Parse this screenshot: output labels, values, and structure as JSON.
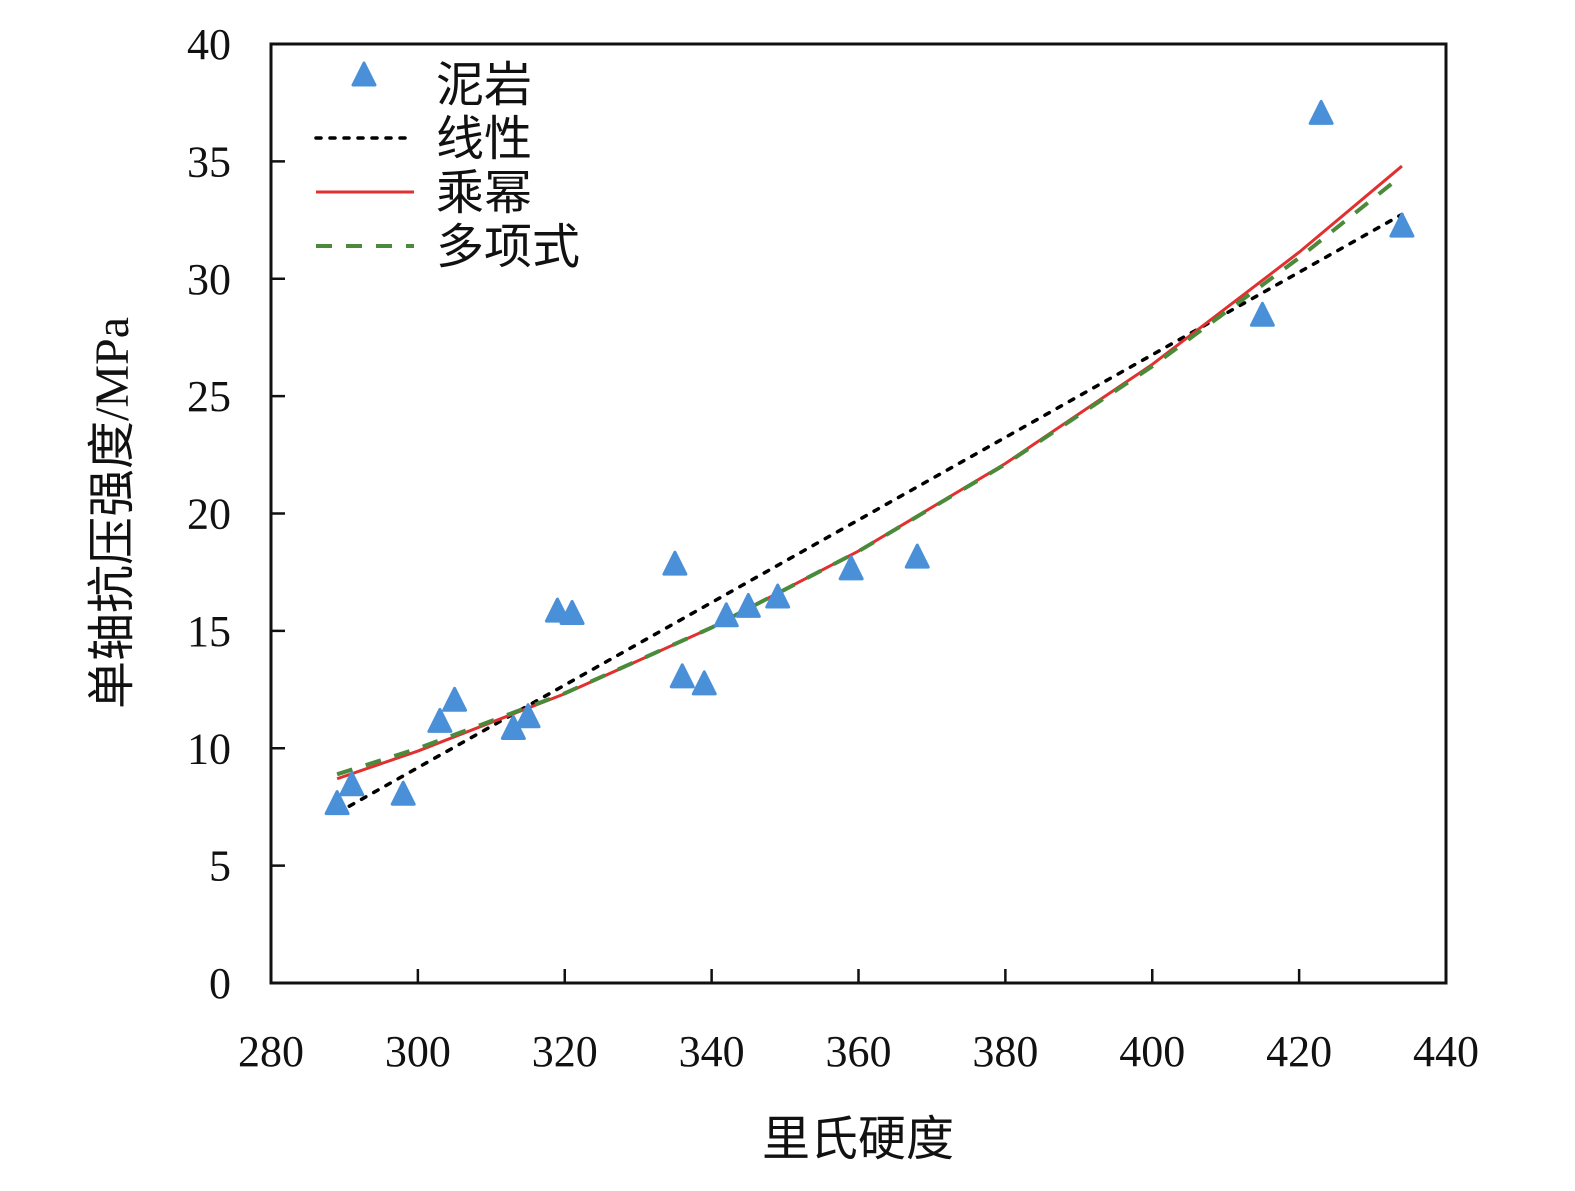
{
  "chart_data": {
    "type": "scatter",
    "title": "",
    "xlabel": "里氏硬度",
    "ylabel": "单轴抗压强度/MPa",
    "xlim": [
      280,
      440
    ],
    "ylim": [
      0,
      40
    ],
    "xticks": [
      280,
      300,
      320,
      340,
      360,
      380,
      400,
      420,
      440
    ],
    "yticks": [
      0,
      5,
      10,
      15,
      20,
      25,
      30,
      35,
      40
    ],
    "grid": false,
    "legend_position": "top-left",
    "series": [
      {
        "name": "泥岩",
        "kind": "scatter",
        "marker": "triangle",
        "color": "#4a90d9",
        "points": [
          [
            289,
            7.6
          ],
          [
            291,
            8.4
          ],
          [
            298,
            8.0
          ],
          [
            303,
            11.1
          ],
          [
            305,
            12.0
          ],
          [
            313,
            10.8
          ],
          [
            315,
            11.3
          ],
          [
            319,
            15.8
          ],
          [
            321,
            15.7
          ],
          [
            335,
            17.8
          ],
          [
            336,
            13.0
          ],
          [
            339,
            12.7
          ],
          [
            342,
            15.6
          ],
          [
            345,
            16.0
          ],
          [
            349,
            16.4
          ],
          [
            359,
            17.6
          ],
          [
            368,
            18.1
          ],
          [
            415,
            28.4
          ],
          [
            423,
            37.0
          ],
          [
            434,
            32.2
          ]
        ]
      },
      {
        "name": "线性",
        "kind": "line",
        "style": "dotted",
        "color": "#000000",
        "points": [
          [
            289,
            7.24
          ],
          [
            434,
            32.74
          ]
        ]
      },
      {
        "name": "乘幂",
        "kind": "line",
        "style": "solid",
        "color": "#e03030",
        "points": [
          [
            289,
            8.7
          ],
          [
            300,
            9.88
          ],
          [
            320,
            12.32
          ],
          [
            340,
            15.14
          ],
          [
            360,
            18.4
          ],
          [
            380,
            22.13
          ],
          [
            400,
            26.35
          ],
          [
            420,
            31.13
          ],
          [
            434,
            34.8
          ]
        ]
      },
      {
        "name": "多项式",
        "kind": "line",
        "style": "dashed",
        "color": "#4a8a3a",
        "points": [
          [
            289,
            8.89
          ],
          [
            300,
            9.99
          ],
          [
            320,
            12.34
          ],
          [
            340,
            15.14
          ],
          [
            360,
            18.39
          ],
          [
            380,
            22.1
          ],
          [
            400,
            26.27
          ],
          [
            420,
            30.89
          ],
          [
            434,
            34.4
          ]
        ]
      }
    ]
  }
}
